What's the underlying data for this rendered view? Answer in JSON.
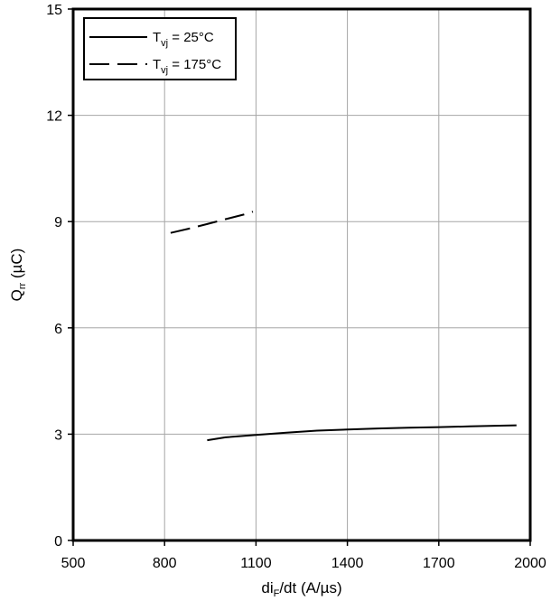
{
  "chart_data": {
    "type": "line",
    "xlabel": {
      "main": "di",
      "sub": "F",
      "rest": "/dt (A/µs)"
    },
    "ylabel": {
      "main": "Q",
      "sub": "rr",
      "rest": " (µC)"
    },
    "xlim": [
      500,
      2000
    ],
    "ylim": [
      0,
      15
    ],
    "x_ticks": [
      500,
      800,
      1100,
      1400,
      1700,
      2000
    ],
    "y_ticks": [
      0,
      3,
      6,
      9,
      12,
      15
    ],
    "grid": true,
    "legend_position": "top-left",
    "series": [
      {
        "name": {
          "main": "T",
          "sub": "vj",
          "rest": " = 25°C"
        },
        "style": "solid",
        "color": "#000000",
        "points": [
          [
            940,
            2.83
          ],
          [
            1000,
            2.91
          ],
          [
            1100,
            2.98
          ],
          [
            1200,
            3.04
          ],
          [
            1300,
            3.1
          ],
          [
            1400,
            3.13
          ],
          [
            1500,
            3.16
          ],
          [
            1600,
            3.18
          ],
          [
            1700,
            3.2
          ],
          [
            1800,
            3.22
          ],
          [
            1900,
            3.24
          ],
          [
            1955,
            3.25
          ]
        ]
      },
      {
        "name": {
          "main": "T",
          "sub": "vj",
          "rest": " = 175°C"
        },
        "style": "dashed",
        "color": "#000000",
        "points": [
          [
            820,
            8.68
          ],
          [
            880,
            8.8
          ],
          [
            940,
            8.93
          ],
          [
            1000,
            9.07
          ],
          [
            1060,
            9.2
          ],
          [
            1090,
            9.28
          ]
        ]
      }
    ]
  }
}
